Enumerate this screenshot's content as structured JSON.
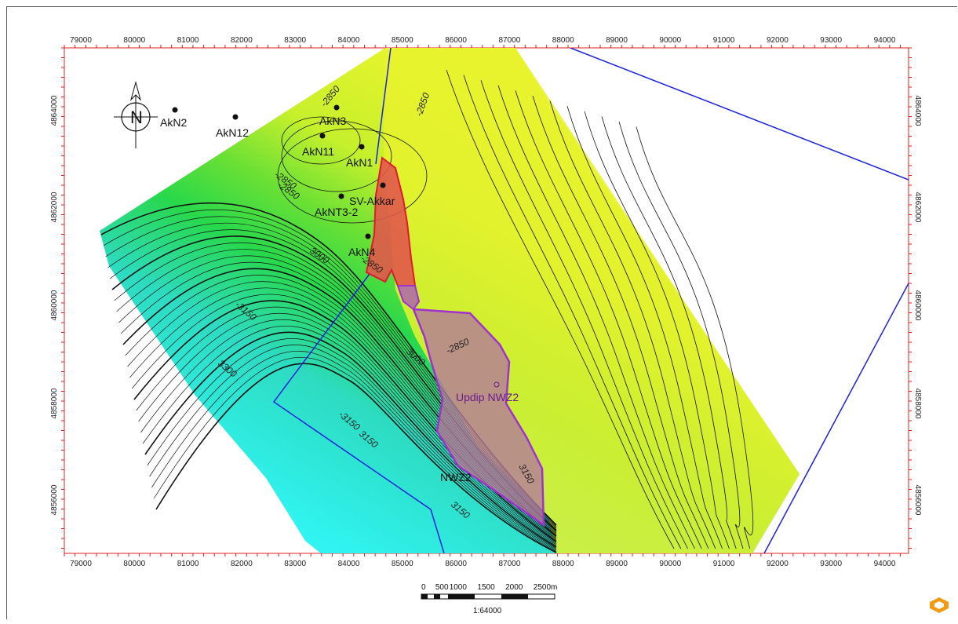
{
  "map": {
    "x_ticks": [
      "79000",
      "80000",
      "81000",
      "82000",
      "83000",
      "84000",
      "85000",
      "86000",
      "87000",
      "88000",
      "89000",
      "90000",
      "91000",
      "92000",
      "93000",
      "94000"
    ],
    "y_ticks": [
      "4864000",
      "4862000",
      "4860000",
      "4858000",
      "4856000"
    ],
    "contour_labels": [
      "-2850",
      "-2850",
      "-2850",
      "-2850",
      "-2850",
      "3000",
      "3000",
      "-3150",
      "3300",
      "-3150",
      "3150",
      "3150",
      "-2850",
      "3150"
    ],
    "wells": [
      {
        "name": "AkN2"
      },
      {
        "name": "AkN12"
      },
      {
        "name": "AkN3"
      },
      {
        "name": "AkN11"
      },
      {
        "name": "AkN1"
      },
      {
        "name": "SV-Akkar"
      },
      {
        "name": "AkNT3-2"
      },
      {
        "name": "AkN4"
      }
    ],
    "polygons": [
      {
        "name": "Updip NWZ2",
        "color": "#9b30d0"
      },
      {
        "name": "SV-Akkar area",
        "color": "#e0303a"
      }
    ],
    "secondary_label": "NWZ2",
    "north_label": "N"
  },
  "scale_bar": {
    "labels": [
      "0",
      "500",
      "1000",
      "1500",
      "2000",
      "2500m"
    ],
    "ratio": "1:64000"
  },
  "colors": {
    "deep": "#2ef2f0",
    "mid": "#2fd12f",
    "shallow": "#eaf52e",
    "fault": "#1a22dd",
    "frame_tick": "#e02020"
  }
}
